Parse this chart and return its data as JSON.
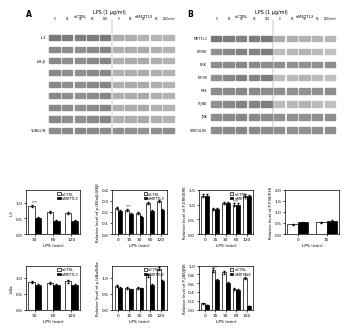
{
  "panel_A_title": "LPS (1 μg/ml)",
  "panel_B_title": "LPS (1 μg/ml)",
  "panel_A_label": "A",
  "panel_B_label": "B",
  "blot_labels_A": [
    "IL3",
    "",
    "IkB-β",
    "",
    "",
    "",
    "",
    "",
    "TUBULIN"
  ],
  "blot_labels_B": [
    "METTL3",
    "P-ERK",
    "ERK",
    "P-P38",
    "P38",
    "P-JNK",
    "JNK",
    "VINCULIN"
  ],
  "time_points": [
    "0",
    "15",
    "30",
    "60",
    "120",
    "0",
    "15",
    "30",
    "60",
    "120(min)"
  ],
  "t5": [
    "0",
    "15",
    "30",
    "60",
    "120"
  ],
  "t3": [
    "30",
    "60",
    "120"
  ],
  "charts_row1": [
    {
      "ylabel": "IL3",
      "ylim": [
        0,
        1.4
      ],
      "yticks": [
        0,
        0.5,
        1.0
      ],
      "x_labels": [
        "30",
        "60",
        "120"
      ],
      "ctrl_vals": [
        0.9,
        0.7,
        0.68
      ],
      "mettl3_vals": [
        0.52,
        0.43,
        0.43
      ],
      "asterisks": [
        "***",
        "",
        ""
      ],
      "show_legend": true
    },
    {
      "ylabel": "Relative level of p-IKKα/β-IKKβ",
      "ylim": [
        0,
        0.4
      ],
      "yticks": [
        0.0,
        0.1,
        0.2,
        0.3,
        0.4
      ],
      "x_labels": [
        "0",
        "15",
        "30",
        "60",
        "120"
      ],
      "ctrl_vals": [
        0.24,
        0.22,
        0.19,
        0.28,
        0.3
      ],
      "mettl3_vals": [
        0.21,
        0.18,
        0.16,
        0.21,
        0.22
      ],
      "asterisks": [
        "",
        "***",
        "",
        "",
        ""
      ],
      "show_legend": true
    },
    {
      "ylabel": "Relative level of P-ERK/ERK",
      "ylim": [
        0.0,
        1.5
      ],
      "yticks": [
        0.0,
        0.5,
        1.0,
        1.5
      ],
      "x_labels": [
        "0",
        "15",
        "30",
        "60",
        "120"
      ],
      "ctrl_vals": [
        1.3,
        0.85,
        1.05,
        1.0,
        1.3
      ],
      "mettl3_vals": [
        1.3,
        0.85,
        1.05,
        1.0,
        1.28
      ],
      "asterisks": [
        "",
        "",
        "",
        "***",
        ""
      ],
      "show_legend": true
    },
    {
      "ylabel": "Relative level of P-P38/P38",
      "ylim": [
        0.0,
        2.0
      ],
      "yticks": [
        0.0,
        0.5,
        1.0,
        1.5,
        2.0
      ],
      "x_labels": [
        "0",
        "15"
      ],
      "ctrl_vals": [
        0.45,
        0.55
      ],
      "mettl3_vals": [
        0.55,
        0.6
      ],
      "asterisks": [
        "",
        ""
      ],
      "show_legend": false
    }
  ],
  "charts_row2": [
    {
      "ylabel": "IkBα",
      "ylim": [
        0,
        1.4
      ],
      "yticks": [
        0,
        0.5,
        1.0
      ],
      "x_labels": [
        "30",
        "60",
        "120"
      ],
      "ctrl_vals": [
        0.88,
        0.85,
        0.9
      ],
      "mettl3_vals": [
        0.78,
        0.78,
        0.8
      ],
      "asterisks": [
        "",
        "",
        ""
      ],
      "show_legend": true
    },
    {
      "ylabel": "Relative level of p-IkBα/IkBα",
      "ylim": [
        0,
        1.4
      ],
      "yticks": [
        0.0,
        0.5,
        1.0
      ],
      "x_labels": [
        "0",
        "15",
        "30",
        "60",
        "120"
      ],
      "ctrl_vals": [
        0.75,
        0.7,
        0.7,
        1.1,
        1.3
      ],
      "mettl3_vals": [
        0.7,
        0.65,
        0.68,
        0.8,
        0.92
      ],
      "asterisks": [
        "",
        "",
        "",
        "",
        ""
      ],
      "show_legend": true
    },
    {
      "ylabel": "Relative level of P-JNK/JNK",
      "ylim": [
        0.0,
        1.0
      ],
      "yticks": [
        0.0,
        0.2,
        0.4,
        0.6,
        0.8,
        1.0
      ],
      "x_labels": [
        "0",
        "15",
        "30",
        "60",
        "120"
      ],
      "ctrl_vals": [
        0.15,
        0.9,
        0.85,
        0.48,
        0.72
      ],
      "mettl3_vals": [
        0.12,
        0.68,
        0.6,
        0.45,
        0.1
      ],
      "asterisks": [
        "",
        "***",
        "",
        "",
        "***"
      ],
      "show_legend": true
    },
    {
      "hidden": true
    }
  ]
}
